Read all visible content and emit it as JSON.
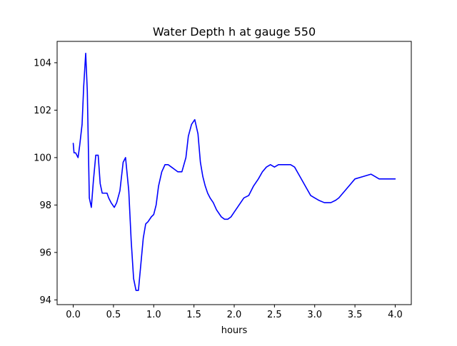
{
  "chart_data": {
    "type": "line",
    "title": "Water Depth h at gauge 550",
    "xlabel": "hours",
    "ylabel": "",
    "xlim": [
      -0.2,
      4.2
    ],
    "ylim": [
      93.8,
      104.9
    ],
    "xticks": [
      0.0,
      0.5,
      1.0,
      1.5,
      2.0,
      2.5,
      3.0,
      3.5,
      4.0
    ],
    "xtick_labels": [
      "0.0",
      "0.5",
      "1.0",
      "1.5",
      "2.0",
      "2.5",
      "3.0",
      "3.5",
      "4.0"
    ],
    "yticks": [
      94,
      96,
      98,
      100,
      102,
      104
    ],
    "ytick_labels": [
      "94",
      "96",
      "98",
      "100",
      "102",
      "104"
    ],
    "grid": false,
    "series": [
      {
        "color": "#0000ff",
        "x": [
          0.0,
          0.01,
          0.03,
          0.06,
          0.08,
          0.11,
          0.13,
          0.155,
          0.175,
          0.2,
          0.225,
          0.25,
          0.28,
          0.31,
          0.335,
          0.36,
          0.38,
          0.42,
          0.44,
          0.47,
          0.51,
          0.54,
          0.58,
          0.62,
          0.65,
          0.69,
          0.72,
          0.75,
          0.78,
          0.81,
          0.84,
          0.87,
          0.9,
          0.93,
          0.97,
          1.0,
          1.03,
          1.06,
          1.1,
          1.14,
          1.18,
          1.22,
          1.26,
          1.3,
          1.35,
          1.4,
          1.43,
          1.47,
          1.51,
          1.55,
          1.58,
          1.61,
          1.64,
          1.67,
          1.7,
          1.74,
          1.78,
          1.84,
          1.88,
          1.92,
          1.96,
          2.0,
          2.04,
          2.08,
          2.12,
          2.18,
          2.24,
          2.3,
          2.35,
          2.4,
          2.45,
          2.5,
          2.55,
          2.6,
          2.65,
          2.7,
          2.75,
          2.8,
          2.85,
          2.9,
          2.95,
          3.0,
          3.05,
          3.12,
          3.2,
          3.26,
          3.3,
          3.35,
          3.4,
          3.45,
          3.5,
          3.6,
          3.7,
          3.75,
          3.8,
          3.85,
          3.9,
          3.95,
          4.0
        ],
        "y": [
          100.6,
          100.2,
          100.2,
          100.0,
          100.5,
          101.4,
          103.0,
          104.4,
          102.8,
          98.3,
          97.9,
          99.0,
          100.1,
          100.1,
          98.9,
          98.5,
          98.5,
          98.5,
          98.3,
          98.1,
          97.9,
          98.1,
          98.6,
          99.8,
          100.0,
          98.6,
          96.5,
          94.9,
          94.4,
          94.4,
          95.5,
          96.6,
          97.2,
          97.3,
          97.5,
          97.6,
          98.0,
          98.8,
          99.4,
          99.7,
          99.7,
          99.6,
          99.5,
          99.4,
          99.4,
          100.0,
          100.9,
          101.4,
          101.6,
          101.0,
          99.8,
          99.2,
          98.8,
          98.5,
          98.3,
          98.1,
          97.8,
          97.5,
          97.4,
          97.4,
          97.5,
          97.7,
          97.9,
          98.1,
          98.3,
          98.4,
          98.8,
          99.1,
          99.4,
          99.6,
          99.7,
          99.6,
          99.7,
          99.7,
          99.7,
          99.7,
          99.6,
          99.3,
          99.0,
          98.7,
          98.4,
          98.3,
          98.2,
          98.1,
          98.1,
          98.2,
          98.3,
          98.5,
          98.7,
          98.9,
          99.1,
          99.2,
          99.3,
          99.2,
          99.1,
          99.1,
          99.1,
          99.1,
          99.1
        ]
      }
    ]
  }
}
